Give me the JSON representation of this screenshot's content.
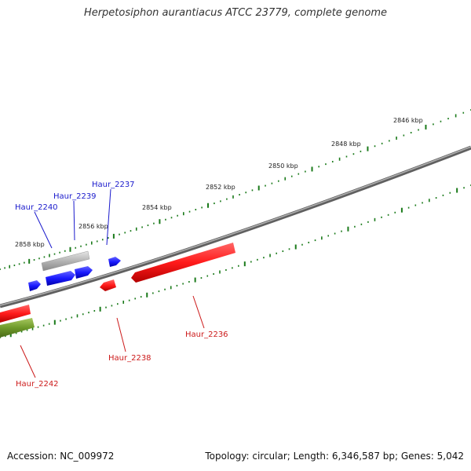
{
  "title": "Herpetosiphon aurantiacus ATCC 23779, complete genome",
  "colors": {
    "backbone": "#808080",
    "tick_green": "#1a7a1a",
    "gene_red": "#ff1a1a",
    "gene_blue": "#1a1aff",
    "gene_gray": "#b4b4b4",
    "gene_olive": "#6e9a2a",
    "label_blue": "#1a1acc",
    "label_red": "#cc1a1a"
  },
  "scale_labels": [
    "2846 kbp",
    "2848 kbp",
    "2850 kbp",
    "2852 kbp",
    "2854 kbp",
    "2856 kbp",
    "2858 kbp"
  ],
  "gene_labels": {
    "upper": [
      "Haur_2237",
      "Haur_2239",
      "Haur_2240"
    ],
    "lower": [
      "Haur_2236",
      "Haur_2238",
      "Haur_2242"
    ]
  },
  "footer": {
    "accession": "Accession: NC_009972",
    "summary": "Topology: circular; Length: 6,346,587 bp; Genes: 5,042"
  }
}
